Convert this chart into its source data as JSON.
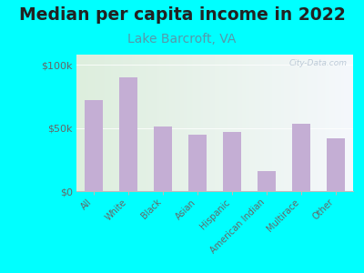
{
  "title": "Median per capita income in 2022",
  "subtitle": "Lake Barcroft, VA",
  "categories": [
    "All",
    "White",
    "Black",
    "Asian",
    "Hispanic",
    "American Indian",
    "Multirace",
    "Other"
  ],
  "values": [
    72000,
    90000,
    51000,
    45000,
    47000,
    16000,
    53000,
    42000
  ],
  "bar_color": "#c4aed4",
  "background_color": "#00FFFF",
  "title_fontsize": 13.5,
  "title_color": "#222222",
  "subtitle_fontsize": 10,
  "subtitle_color": "#5599aa",
  "tick_color": "#666666",
  "ylabel_ticks": [
    "$0",
    "$50k",
    "$100k"
  ],
  "ylabel_values": [
    0,
    50000,
    100000
  ],
  "ylim": [
    0,
    108000
  ],
  "watermark": "City-Data.com",
  "watermark_color": "#aabbcc",
  "plot_border_color": "#cccccc",
  "bg_gradient_left": "#ddeedd",
  "bg_gradient_right": "#eef5fa"
}
